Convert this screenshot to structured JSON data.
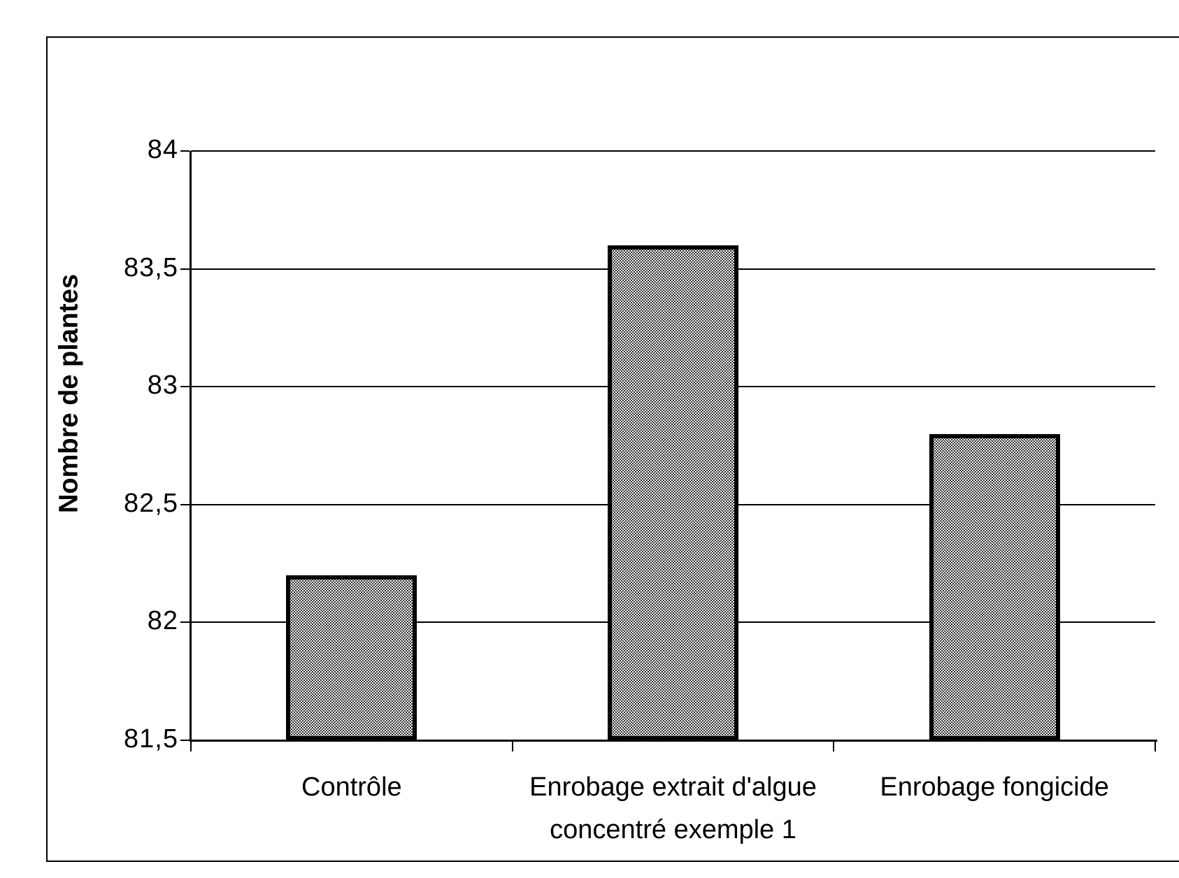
{
  "figure": {
    "background_color": "#ffffff",
    "frame_color": "#000000",
    "axis_color": "#000000"
  },
  "chart_data": {
    "type": "bar",
    "title": "",
    "categories": [
      "Contrôle",
      "Enrobage extrait d'algue concentré exemple 1",
      "Enrobage fongicide"
    ],
    "category_label_lines": [
      [
        "Contrôle"
      ],
      [
        "Enrobage extrait d'algue",
        "concentré exemple 1"
      ],
      [
        "Enrobage fongicide"
      ]
    ],
    "values": [
      82.2,
      83.6,
      82.8
    ],
    "series": [
      {
        "name": "Nombre de plantes",
        "values": [
          82.2,
          83.6,
          82.8
        ]
      }
    ],
    "xlabel": "",
    "ylabel": "Nombre de plantes",
    "ylim": [
      81.5,
      84
    ],
    "ytick_step": 0.5,
    "yticks": [
      {
        "value": 84,
        "label": "84"
      },
      {
        "value": 83.5,
        "label": "83,5"
      },
      {
        "value": 83,
        "label": "83"
      },
      {
        "value": 82.5,
        "label": "82,5"
      },
      {
        "value": 82,
        "label": "82"
      },
      {
        "value": 81.5,
        "label": "81,5"
      }
    ],
    "decimal_separator": ",",
    "grid": true,
    "legend": "none",
    "bar_fill": "dense black-dot stipple on light gray",
    "bar_fill_base_color": "#efefef",
    "bar_border_color": "#000000"
  }
}
